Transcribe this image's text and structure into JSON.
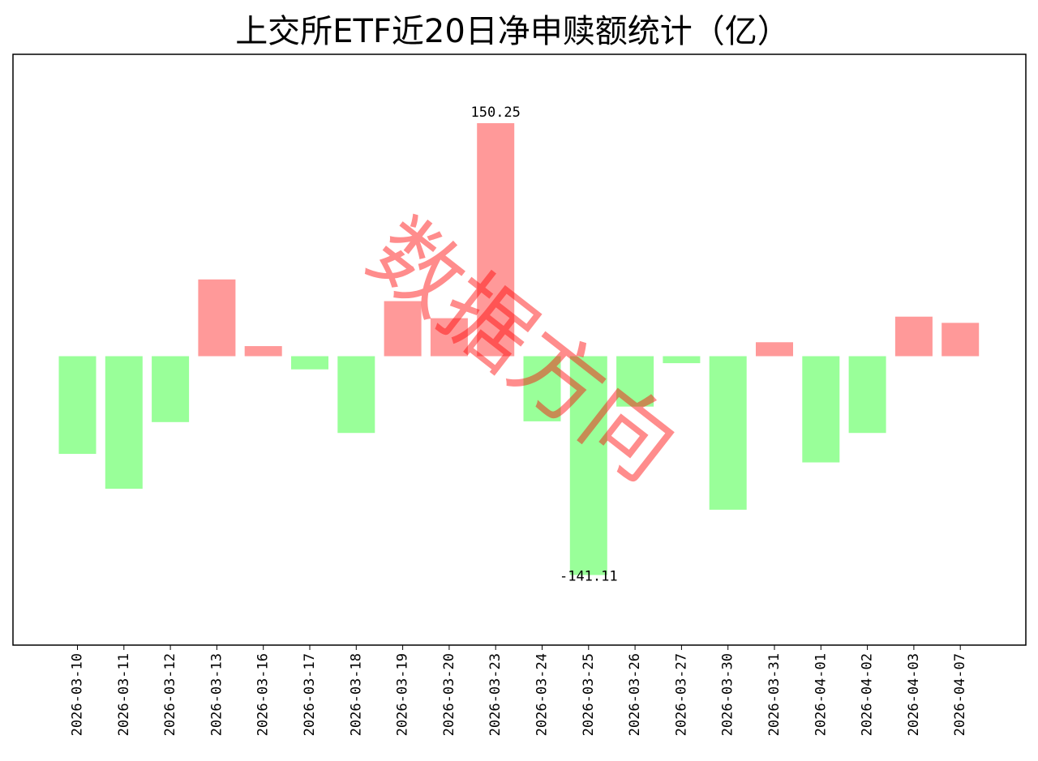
{
  "chart_data": {
    "type": "bar",
    "title": "上交所ETF近20日净申赎额统计（亿）",
    "xlabel": "",
    "ylabel": "",
    "ylim": [
      -200,
      180
    ],
    "grid": false,
    "legend": "none",
    "categories": [
      "2026-03-10",
      "2026-03-11",
      "2026-03-12",
      "2026-03-13",
      "2026-03-16",
      "2026-03-17",
      "2026-03-18",
      "2026-03-19",
      "2026-03-20",
      "2026-03-23",
      "2026-03-24",
      "2026-03-25",
      "2026-03-26",
      "2026-03-27",
      "2026-03-30",
      "2026-03-31",
      "2026-04-01",
      "2026-04-02",
      "2026-04-03",
      "2026-04-07"
    ],
    "values": [
      -63,
      -85.5,
      -42.5,
      49.5,
      6.5,
      -8.5,
      -49.5,
      35.5,
      24.5,
      150.25,
      -42,
      -141.11,
      -32.5,
      -4.5,
      -99,
      9,
      -68.5,
      -49.5,
      25.5,
      21.5
    ],
    "data_labels": [
      {
        "index": 9,
        "text": "150.25"
      },
      {
        "index": 11,
        "text": "-141.11"
      }
    ],
    "colors": {
      "positive": "#ff9999",
      "negative": "#99ff99"
    },
    "watermark": "数据方向"
  }
}
